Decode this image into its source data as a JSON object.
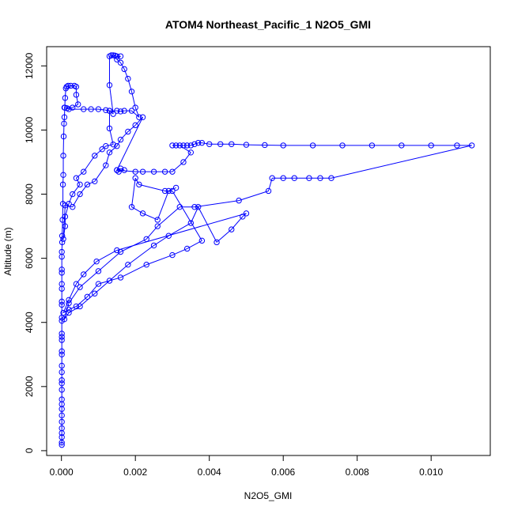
{
  "chart_data": {
    "type": "scatter",
    "title": "ATOM4 Northeast_Pacific_1 N2O5_GMI",
    "xlabel": "N2O5_GMI",
    "ylabel": "Altitude (m)",
    "xlim": [
      -0.0004,
      0.0116
    ],
    "ylim": [
      -150,
      12600
    ],
    "xticks": [
      0,
      0.002,
      0.004,
      0.006,
      0.008,
      0.01
    ],
    "xtick_labels": [
      "0.000",
      "0.002",
      "0.004",
      "0.006",
      "0.008",
      "0.010"
    ],
    "yticks": [
      0,
      2000,
      4000,
      6000,
      8000,
      10000,
      12000
    ],
    "ytick_labels": [
      "0",
      "2000",
      "4000",
      "6000",
      "8000",
      "10000",
      "12000"
    ],
    "grid": false,
    "legend": "none",
    "series": [
      {
        "color": "#0000ff",
        "marker": "open-circle",
        "line": true,
        "points": [
          [
            1e-05,
            180
          ],
          [
            1e-05,
            250
          ],
          [
            1e-05,
            420
          ],
          [
            1e-05,
            550
          ],
          [
            1e-05,
            700
          ],
          [
            1e-05,
            900
          ],
          [
            1e-05,
            1100
          ],
          [
            1e-05,
            1300
          ],
          [
            1e-05,
            1450
          ],
          [
            1e-05,
            1600
          ],
          [
            1e-05,
            1900
          ],
          [
            1e-05,
            2100
          ],
          [
            1e-05,
            2200
          ],
          [
            1e-05,
            2450
          ],
          [
            1e-05,
            2650
          ],
          [
            1e-05,
            3000
          ],
          [
            1e-05,
            3100
          ],
          [
            1e-05,
            3450
          ],
          [
            1e-05,
            3550
          ],
          [
            1e-05,
            3650
          ],
          [
            1e-05,
            4050
          ],
          [
            1e-05,
            4150
          ],
          [
            1e-05,
            4550
          ],
          [
            1e-05,
            4650
          ],
          [
            1e-05,
            5050
          ],
          [
            1e-05,
            5200
          ],
          [
            1e-05,
            5550
          ],
          [
            1e-05,
            5650
          ],
          [
            1e-05,
            6050
          ],
          [
            1e-05,
            6200
          ],
          [
            2e-05,
            6500
          ],
          [
            2e-05,
            6700
          ],
          [
            3e-05,
            7200
          ],
          [
            4e-05,
            7700
          ],
          [
            4e-05,
            8300
          ],
          [
            5e-05,
            8600
          ],
          [
            5e-05,
            9200
          ],
          [
            6e-05,
            9800
          ],
          [
            7e-05,
            10200
          ],
          [
            8e-05,
            10400
          ],
          [
            9e-05,
            10700
          ],
          [
            0.0001,
            11000
          ],
          [
            0.00012,
            11300
          ],
          [
            0.00014,
            11350
          ],
          [
            0.00018,
            11380
          ],
          [
            0.00025,
            11380
          ],
          [
            0.00035,
            11380
          ],
          [
            0.0004,
            11350
          ],
          [
            0.0004,
            11100
          ],
          [
            0.00045,
            10800
          ],
          [
            0.0003,
            10700
          ],
          [
            0.00015,
            10680
          ],
          [
            8e-05,
            10700
          ],
          [
            0.0002,
            10650
          ],
          [
            0.0006,
            10650
          ],
          [
            0.0008,
            10650
          ],
          [
            0.001,
            10650
          ],
          [
            0.0012,
            10620
          ],
          [
            0.0013,
            10600
          ],
          [
            0.0014,
            10500
          ],
          [
            0.0013,
            11400
          ],
          [
            0.0013,
            12300
          ],
          [
            0.00135,
            12330
          ],
          [
            0.0014,
            12330
          ],
          [
            0.00145,
            12320
          ],
          [
            0.0015,
            12300
          ],
          [
            0.0016,
            12300
          ],
          [
            0.0015,
            12200
          ],
          [
            0.0016,
            12100
          ],
          [
            0.0017,
            11900
          ],
          [
            0.0018,
            11600
          ],
          [
            0.0019,
            11200
          ],
          [
            0.002,
            10700
          ],
          [
            0.0021,
            10400
          ],
          [
            0.0019,
            10600
          ],
          [
            0.0017,
            10600
          ],
          [
            0.0016,
            10580
          ],
          [
            0.0015,
            10600
          ],
          [
            0.0013,
            10600
          ],
          [
            0.0013,
            10050
          ],
          [
            0.0014,
            9550
          ],
          [
            0.0012,
            9500
          ],
          [
            0.0011,
            9400
          ],
          [
            0.0009,
            9200
          ],
          [
            0.0006,
            8700
          ],
          [
            0.0004,
            8500
          ],
          [
            0.0005,
            8300
          ],
          [
            0.0003,
            8000
          ],
          [
            0.0002,
            7700
          ],
          [
            0.0001,
            7300
          ],
          [
            0.0001,
            7000
          ],
          [
            5e-05,
            6600
          ],
          [
            0.0001,
            7650
          ],
          [
            0.0003,
            7600
          ],
          [
            0.0005,
            8000
          ],
          [
            0.0007,
            8300
          ],
          [
            0.0009,
            8400
          ],
          [
            0.0012,
            8900
          ],
          [
            0.0013,
            9300
          ],
          [
            0.0015,
            9500
          ],
          [
            0.0016,
            9700
          ],
          [
            0.0018,
            9950
          ],
          [
            0.002,
            10150
          ],
          [
            0.0022,
            10400
          ],
          [
            0.0015,
            8750
          ],
          [
            0.0016,
            8800
          ],
          [
            0.0017,
            8750
          ],
          [
            0.00155,
            8700
          ],
          [
            0.0015,
            8750
          ],
          [
            0.002,
            8700
          ],
          [
            0.0022,
            8700
          ],
          [
            0.0025,
            8700
          ],
          [
            0.0028,
            8700
          ],
          [
            0.003,
            8700
          ],
          [
            0.0033,
            9000
          ],
          [
            0.0035,
            9300
          ],
          [
            0.0032,
            9520
          ],
          [
            0.0031,
            9520
          ],
          [
            0.003,
            9520
          ],
          [
            0.0033,
            9520
          ],
          [
            0.0034,
            9520
          ],
          [
            0.0035,
            9520
          ],
          [
            0.0036,
            9560
          ],
          [
            0.0037,
            9600
          ],
          [
            0.0038,
            9600
          ],
          [
            0.004,
            9560
          ],
          [
            0.0043,
            9560
          ],
          [
            0.0046,
            9560
          ],
          [
            0.005,
            9540
          ],
          [
            0.0055,
            9530
          ],
          [
            0.006,
            9520
          ],
          [
            0.0068,
            9520
          ],
          [
            0.0076,
            9520
          ],
          [
            0.0084,
            9520
          ],
          [
            0.0092,
            9520
          ],
          [
            0.01,
            9520
          ],
          [
            0.0107,
            9520
          ],
          [
            0.0111,
            9520
          ],
          [
            0.0073,
            8500
          ],
          [
            0.007,
            8500
          ],
          [
            0.0067,
            8500
          ],
          [
            0.0063,
            8500
          ],
          [
            0.006,
            8500
          ],
          [
            0.0057,
            8500
          ],
          [
            0.0056,
            8100
          ],
          [
            0.0048,
            7800
          ],
          [
            0.0036,
            7600
          ],
          [
            0.0032,
            7600
          ],
          [
            0.0026,
            7000
          ],
          [
            0.0023,
            6600
          ],
          [
            0.0016,
            6200
          ],
          [
            0.001,
            5600
          ],
          [
            0.0005,
            5100
          ],
          [
            0.0002,
            4600
          ],
          [
            8e-05,
            4100
          ],
          [
            0.0002,
            4300
          ],
          [
            0.0005,
            4500
          ],
          [
            0.0009,
            4900
          ],
          [
            0.0013,
            5300
          ],
          [
            0.0018,
            5800
          ],
          [
            0.0025,
            6400
          ],
          [
            0.0029,
            6700
          ],
          [
            0.0035,
            7100
          ],
          [
            0.0037,
            7600
          ],
          [
            0.0042,
            6500
          ],
          [
            0.0046,
            6900
          ],
          [
            0.0049,
            7300
          ],
          [
            0.005,
            7400
          ],
          [
            0.0015,
            6250
          ],
          [
            0.00095,
            5900
          ],
          [
            0.0006,
            5500
          ],
          [
            0.0004,
            5200
          ],
          [
            0.0002,
            4700
          ],
          [
            5e-05,
            4300
          ],
          [
            0.0002,
            4400
          ],
          [
            0.0004,
            4500
          ],
          [
            0.0007,
            4800
          ],
          [
            0.001,
            5200
          ],
          [
            0.0016,
            5400
          ],
          [
            0.0023,
            5800
          ],
          [
            0.003,
            6100
          ],
          [
            0.0034,
            6300
          ],
          [
            0.0038,
            6550
          ],
          [
            0.003,
            8100
          ],
          [
            0.0028,
            8100
          ],
          [
            0.0021,
            8300
          ],
          [
            0.002,
            8500
          ],
          [
            0.0019,
            7600
          ],
          [
            0.0022,
            7400
          ],
          [
            0.0026,
            7200
          ],
          [
            0.0029,
            8100
          ],
          [
            0.0031,
            8200
          ]
        ]
      }
    ]
  }
}
